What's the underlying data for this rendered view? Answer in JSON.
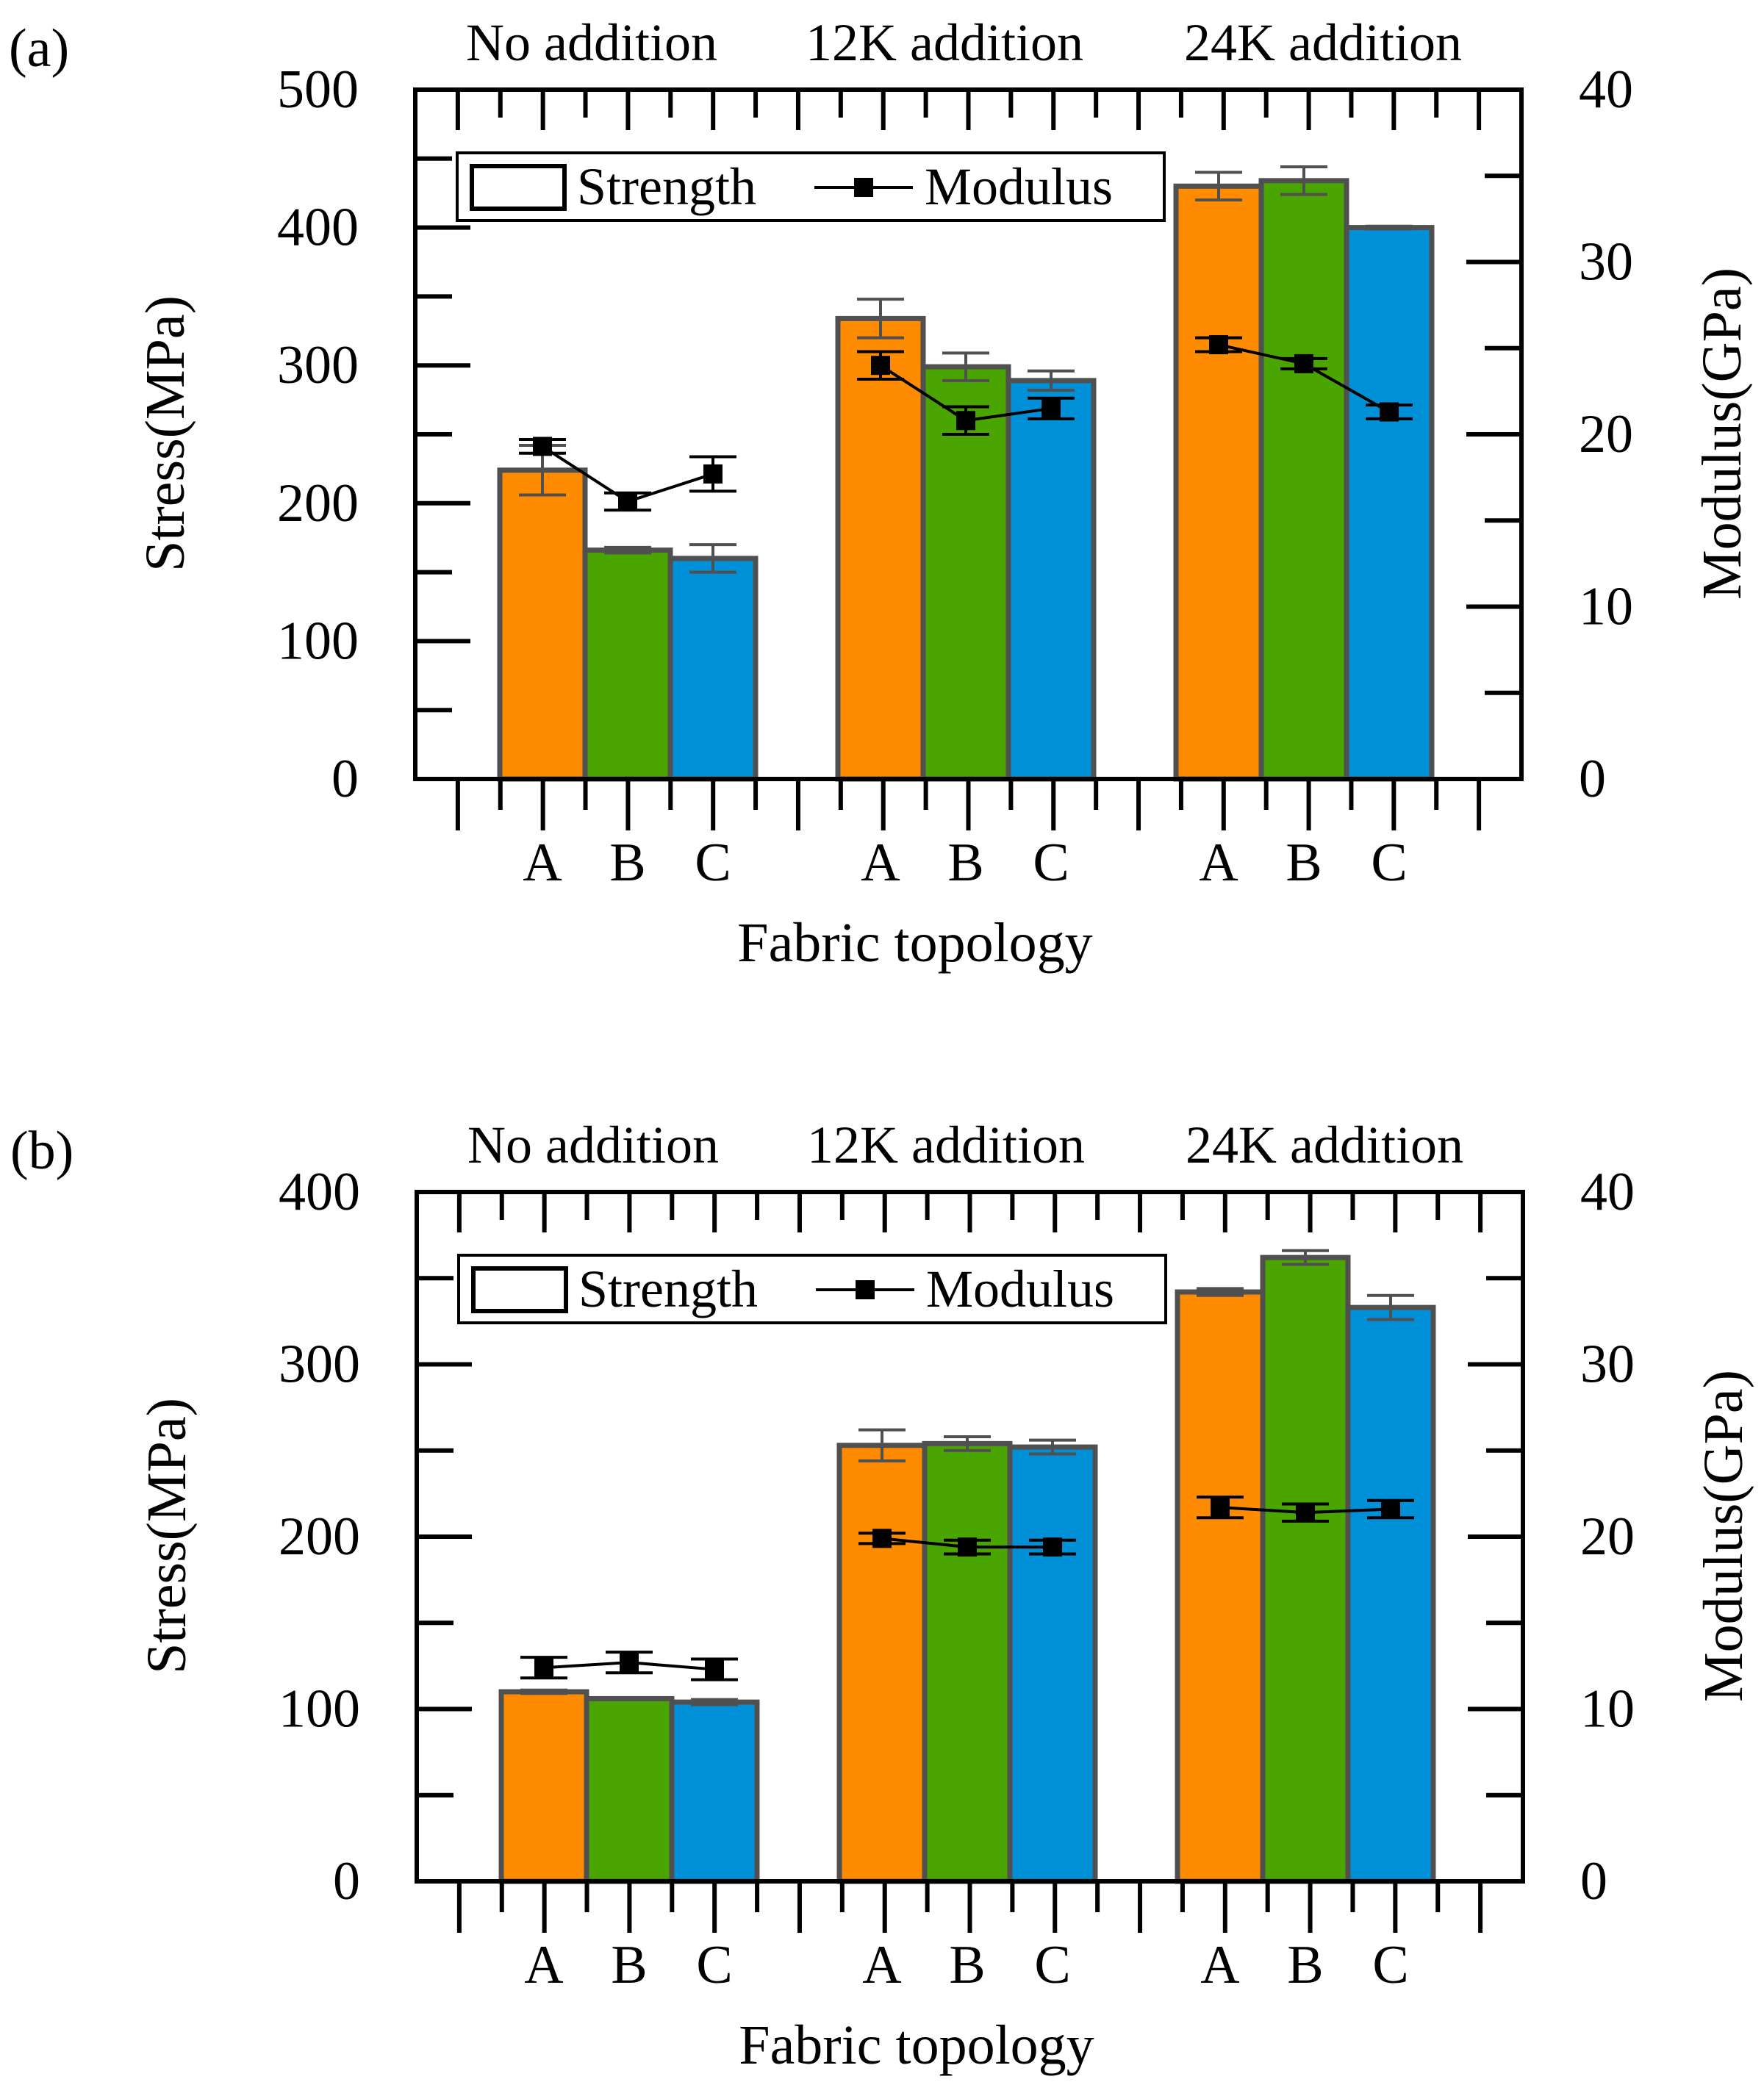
{
  "colors": {
    "A": "#ff8c00",
    "B": "#4aa500",
    "C": "#0090d8",
    "bar_edge": "#505050",
    "modulus_line": "#000000",
    "axes": "#000000"
  },
  "legend_position": "top-left",
  "chart_data": [
    {
      "panel_label": "(a)",
      "type": "bar",
      "group_labels": [
        "No addition",
        "12K addition",
        "24K addition"
      ],
      "categories": [
        "A",
        "B",
        "C",
        "A",
        "B",
        "C",
        "A",
        "B",
        "C"
      ],
      "xlabel": "Fabric topology",
      "ylabel": "Stress(MPa)",
      "ylabel_right": "Modulus(GPa)",
      "ylim": [
        0,
        500
      ],
      "ylim_right": [
        0,
        40
      ],
      "yticks": [
        0,
        100,
        200,
        300,
        400,
        500
      ],
      "yticks_right": [
        0,
        10,
        20,
        30,
        40
      ],
      "legend": [
        "Strength",
        "Modulus"
      ],
      "grid": false,
      "series": [
        {
          "name": "Strength",
          "kind": "bar",
          "axis": "left",
          "values": [
            224,
            166,
            160,
            334,
            299,
            289,
            430,
            434,
            400
          ],
          "errors": [
            18,
            2,
            10,
            14,
            10,
            7,
            10,
            10,
            1
          ]
        },
        {
          "name": "Modulus",
          "kind": "line",
          "axis": "right",
          "values": [
            19.3,
            16.1,
            17.7,
            24.0,
            20.8,
            21.5,
            25.2,
            24.1,
            21.3
          ],
          "errors": [
            0.4,
            0.5,
            1.0,
            0.8,
            0.8,
            0.6,
            0.4,
            0.3,
            0.4
          ]
        }
      ]
    },
    {
      "panel_label": "(b)",
      "type": "bar",
      "group_labels": [
        "No addition",
        "12K addition",
        "24K addition"
      ],
      "categories": [
        "A",
        "B",
        "C",
        "A",
        "B",
        "C",
        "A",
        "B",
        "C"
      ],
      "xlabel": "Fabric topology",
      "ylabel": "Stress(MPa)",
      "ylabel_right": "Modulus(GPa)",
      "ylim": [
        0,
        400
      ],
      "ylim_right": [
        0,
        40
      ],
      "yticks": [
        0,
        100,
        200,
        300,
        400
      ],
      "yticks_right": [
        0,
        10,
        20,
        30,
        40
      ],
      "legend": [
        "Strength",
        "Modulus"
      ],
      "grid": false,
      "series": [
        {
          "name": "Strength",
          "kind": "bar",
          "axis": "left",
          "values": [
            110,
            106,
            104,
            253,
            254,
            252,
            342,
            362,
            333
          ],
          "errors": [
            1,
            0.5,
            1.5,
            9,
            4,
            4,
            2,
            4,
            7
          ]
        },
        {
          "name": "Modulus",
          "kind": "line",
          "axis": "right",
          "values": [
            12.4,
            12.7,
            12.3,
            19.9,
            19.4,
            19.4,
            21.7,
            21.4,
            21.6
          ],
          "errors": [
            0.6,
            0.6,
            0.6,
            0.3,
            0.4,
            0.4,
            0.6,
            0.5,
            0.5
          ]
        }
      ]
    }
  ]
}
